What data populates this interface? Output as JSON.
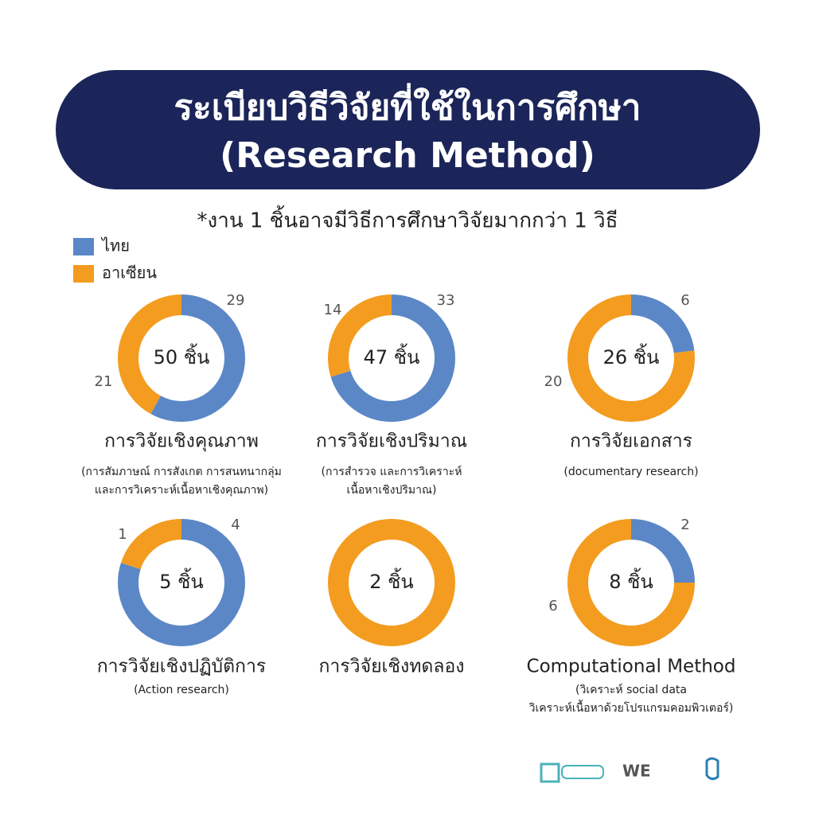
{
  "title": "ระเบียบวิธีวิจัยที่ใช้ในการศึกษา",
  "subtitle": "(Research Method)",
  "note": "*งาน 1 ชิ้นอาจมีวิธีการศึกษาวิจัยมากกว่า 1 วิธี",
  "legend": {
    "names": [
      "ไทย",
      "อาเซียน"
    ],
    "colors": [
      "#5b87c7",
      "#f39c1f"
    ]
  },
  "logo": "WE",
  "chart_data": [
    {
      "type": "donut",
      "title": "การวิจัยเชิงคุณภาพ",
      "subtitle": [
        "(การสัมภาษณ์ การสังเกต การสนทนากลุ่ม",
        "และการวิเคราะห์เนื้อหาเชิงคุณภาพ)"
      ],
      "center_label": "50 ชิ้น",
      "values": [
        29,
        21
      ],
      "value_labels": [
        "29",
        "21"
      ]
    },
    {
      "type": "donut",
      "title": "การวิจัยเชิงปริมาณ",
      "subtitle": [
        "(การสำรวจ และการวิเคราะห์",
        "เนื้อหาเชิงปริมาณ)"
      ],
      "center_label": "47 ชิ้น",
      "values": [
        33,
        14
      ],
      "value_labels": [
        "33",
        "14"
      ]
    },
    {
      "type": "donut",
      "title": "การวิจัยเอกสาร",
      "subtitle": [
        "(documentary research)"
      ],
      "center_label": "26 ชิ้น",
      "values": [
        6,
        20
      ],
      "value_labels": [
        "6",
        "20"
      ]
    },
    {
      "type": "donut",
      "title": "การวิจัยเชิงปฏิบัติการ",
      "subtitle": [
        "(Action research)"
      ],
      "center_label": "5 ชิ้น",
      "values": [
        4,
        1
      ],
      "value_labels": [
        "4",
        "1"
      ]
    },
    {
      "type": "donut",
      "title": "การวิจัยเชิงทดลอง",
      "subtitle": [],
      "center_label": "2 ชิ้น",
      "values": [
        0,
        2
      ]
    },
    {
      "type": "donut",
      "title": "Computational Method",
      "subtitle": [
        "(วิเคราะห์ social data",
        "วิเคราะห์เนื้อหาด้วยโปรแกรมคอมพิวเตอร์)"
      ],
      "center_label": "8 ชิ้น",
      "values": [
        2,
        6
      ],
      "value_labels": [
        "2",
        "6"
      ]
    }
  ]
}
